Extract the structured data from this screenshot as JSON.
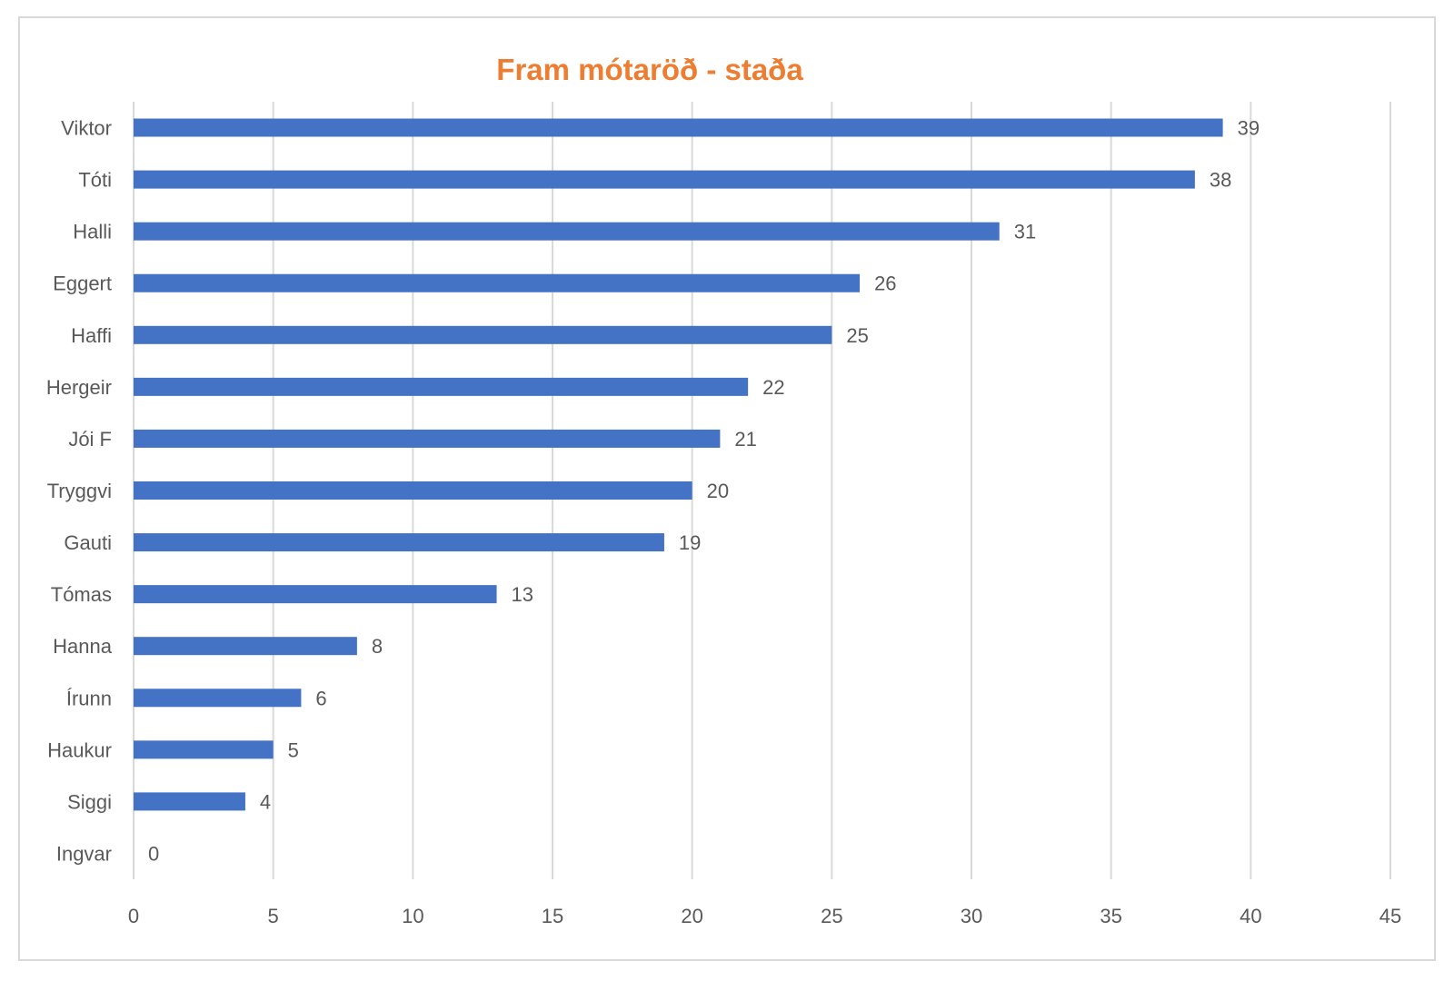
{
  "chart_data": {
    "type": "bar",
    "orientation": "horizontal",
    "title": "Fram mótaröð - staða",
    "xlabel": "",
    "ylabel": "",
    "categories": [
      "Viktor",
      "Tóti",
      "Halli",
      "Eggert",
      "Haffi",
      "Hergeir",
      "Jói F",
      "Tryggvi",
      "Gauti",
      "Tómas",
      "Hanna",
      "Írunn",
      "Haukur",
      "Siggi",
      "Ingvar"
    ],
    "values": [
      39,
      38,
      31,
      26,
      25,
      22,
      21,
      20,
      19,
      13,
      8,
      6,
      5,
      4,
      0
    ],
    "xlim": [
      0,
      45
    ],
    "xticks": [
      0,
      5,
      10,
      15,
      20,
      25,
      30,
      35,
      40,
      45
    ],
    "grid": "vertical",
    "data_labels": true,
    "legend": "none"
  },
  "colors": {
    "bar": "#4472c4",
    "title": "#ed7d31",
    "gridline": "#d9d9d9",
    "text": "#595959"
  }
}
